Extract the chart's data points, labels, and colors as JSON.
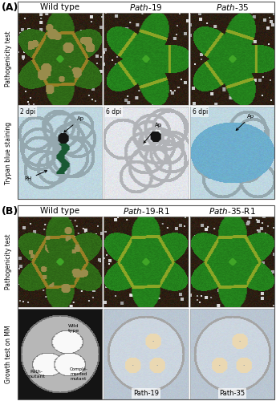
{
  "fig_width": 3.44,
  "fig_height": 5.0,
  "dpi": 100,
  "background": "#ffffff",
  "panel_A_label": "(A)",
  "panel_B_label": "(B)",
  "col_headers_A": [
    "Wild type",
    "Path-19",
    "Path-35"
  ],
  "col_headers_B": [
    "Wild type",
    "Path-19-R1",
    "Path-35-R1"
  ],
  "col_headers_italic_A": [
    false,
    true,
    true
  ],
  "col_headers_italic_B": [
    false,
    true,
    true
  ],
  "row_labels_A": [
    "Pathogenicity test",
    "Trypan blue staining"
  ],
  "row_labels_B": [
    "Pathogenicity test",
    "Growth test on MM"
  ],
  "dpi_labels_A_row2": [
    "2 dpi",
    "6 dpi",
    "6 dpi"
  ],
  "path_labels_B_row2": [
    "",
    "Path-19",
    "Path-35"
  ],
  "border_color": "#999999",
  "text_color_dark": "#000000",
  "header_fontsize": 7.5,
  "panel_label_fontsize": 9,
  "row_label_fontsize": 5.5
}
